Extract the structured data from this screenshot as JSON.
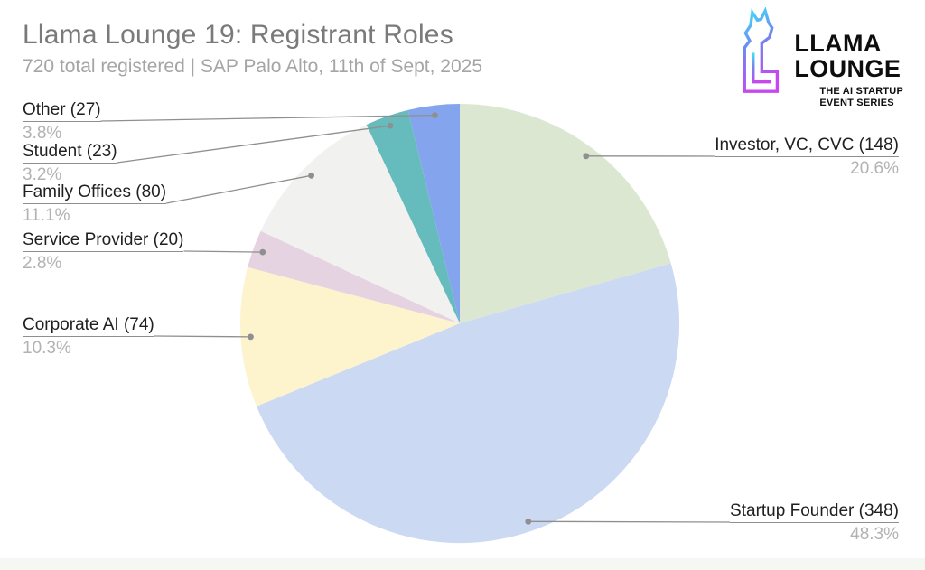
{
  "header": {
    "title": "Llama Lounge 19: Registrant Roles",
    "subtitle": "720 total registered |  SAP Palo Alto, 11th of Sept, 2025"
  },
  "logo": {
    "line1": "LLAMA",
    "line2": "LOUNGE",
    "tagline1": "THE AI STARTUP",
    "tagline2": "EVENT SERIES",
    "gradient_top": "#3EE3F7",
    "gradient_mid": "#6F86F3",
    "gradient_bottom": "#C648EE"
  },
  "chart_data": {
    "type": "pie",
    "title": "Llama Lounge 19: Registrant Roles",
    "total_registered": 720,
    "event_info": "SAP Palo Alto, 11th of Sept, 2025",
    "start_angle": "12 o'clock, clockwise",
    "legend_position": "none",
    "label_style": "outside with leader lines and dots",
    "leader_color": "#8f8f8f",
    "slices": [
      {
        "label": "Investor, VC, CVC",
        "count": 148,
        "pct": 20.6,
        "color": "#dce7d2",
        "side": "right"
      },
      {
        "label": "Startup Founder",
        "count": 348,
        "pct": 48.3,
        "color": "#ccd9f2",
        "side": "right"
      },
      {
        "label": "Corporate AI",
        "count": 74,
        "pct": 10.3,
        "color": "#fdf3cd",
        "side": "left"
      },
      {
        "label": "Service Provider",
        "count": 20,
        "pct": 2.8,
        "color": "#e5d3e1",
        "side": "left"
      },
      {
        "label": "Family Offices",
        "count": 80,
        "pct": 11.1,
        "color": "#f1f1f0",
        "side": "left"
      },
      {
        "label": "Student",
        "count": 23,
        "pct": 3.2,
        "color": "#66bcbd",
        "side": "left"
      },
      {
        "label": "Other",
        "count": 27,
        "pct": 3.8,
        "color": "#84a5ee",
        "side": "left"
      }
    ]
  }
}
